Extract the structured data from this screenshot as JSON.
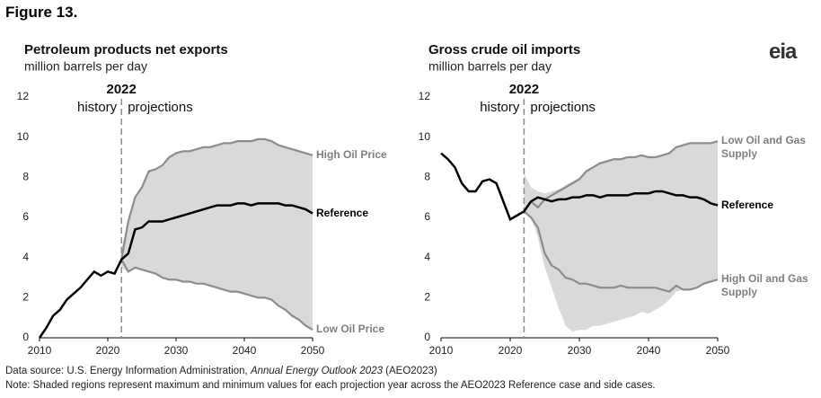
{
  "figure_label": "Figure 13.",
  "logo": "eia",
  "source": {
    "prefix": "Data source: U.S. Energy Information Administration, ",
    "title": "Annual Energy Outlook 2023",
    "suffix": " (AEO2023)"
  },
  "note": "Note: Shaded regions represent maximum and minimum values for each projection year across the AEO2023 Reference case and side cases.",
  "chart_data": [
    {
      "type": "line",
      "title": "Petroleum products net exports",
      "subtitle": "million barrels per day",
      "xlim": [
        2010,
        2050
      ],
      "xticks": [
        2010,
        2020,
        2030,
        2040,
        2050
      ],
      "ylim": [
        0,
        12
      ],
      "yticks": [
        0,
        2,
        4,
        6,
        8,
        10,
        12
      ],
      "divider": 2022,
      "history_label": "history",
      "projection_label": "projections",
      "band": {
        "color": "#d9d9d9",
        "x": [
          2022,
          2023,
          2024,
          2025,
          2026,
          2027,
          2028,
          2029,
          2030,
          2031,
          2032,
          2033,
          2034,
          2035,
          2036,
          2037,
          2038,
          2039,
          2040,
          2041,
          2042,
          2043,
          2044,
          2045,
          2046,
          2047,
          2048,
          2049,
          2050
        ],
        "upper": [
          4.5,
          5.8,
          7.0,
          7.5,
          8.3,
          8.4,
          8.6,
          9.0,
          9.2,
          9.3,
          9.3,
          9.4,
          9.5,
          9.5,
          9.6,
          9.7,
          9.7,
          9.8,
          9.8,
          9.8,
          9.9,
          9.9,
          9.8,
          9.6,
          9.5,
          9.4,
          9.3,
          9.2,
          9.1
        ],
        "lower": [
          3.5,
          3.3,
          3.5,
          3.4,
          3.3,
          3.2,
          3.0,
          2.9,
          2.9,
          2.8,
          2.8,
          2.7,
          2.7,
          2.6,
          2.5,
          2.4,
          2.3,
          2.3,
          2.2,
          2.1,
          2.0,
          2.0,
          1.9,
          1.6,
          1.4,
          1.1,
          0.9,
          0.6,
          0.4
        ]
      },
      "series": [
        {
          "name": "High Oil Price",
          "color": "#8c8c8c",
          "x": [
            2022,
            2023,
            2024,
            2025,
            2026,
            2027,
            2028,
            2029,
            2030,
            2031,
            2032,
            2033,
            2034,
            2035,
            2036,
            2037,
            2038,
            2039,
            2040,
            2041,
            2042,
            2043,
            2044,
            2045,
            2046,
            2047,
            2048,
            2049,
            2050
          ],
          "values": [
            3.9,
            5.8,
            7.0,
            7.5,
            8.3,
            8.4,
            8.6,
            9.0,
            9.2,
            9.3,
            9.3,
            9.4,
            9.5,
            9.5,
            9.6,
            9.7,
            9.7,
            9.8,
            9.8,
            9.8,
            9.9,
            9.9,
            9.8,
            9.6,
            9.5,
            9.4,
            9.3,
            9.2,
            9.1
          ]
        },
        {
          "name": "Low Oil Price",
          "color": "#8c8c8c",
          "x": [
            2022,
            2023,
            2024,
            2025,
            2026,
            2027,
            2028,
            2029,
            2030,
            2031,
            2032,
            2033,
            2034,
            2035,
            2036,
            2037,
            2038,
            2039,
            2040,
            2041,
            2042,
            2043,
            2044,
            2045,
            2046,
            2047,
            2048,
            2049,
            2050
          ],
          "values": [
            3.9,
            3.3,
            3.5,
            3.4,
            3.3,
            3.2,
            3.0,
            2.9,
            2.9,
            2.8,
            2.8,
            2.7,
            2.7,
            2.6,
            2.5,
            2.4,
            2.3,
            2.3,
            2.2,
            2.1,
            2.0,
            2.0,
            1.9,
            1.6,
            1.4,
            1.1,
            0.9,
            0.6,
            0.4
          ]
        },
        {
          "name": "Reference",
          "color": "#000000",
          "x": [
            2010,
            2011,
            2012,
            2013,
            2014,
            2015,
            2016,
            2017,
            2018,
            2019,
            2020,
            2021,
            2022,
            2023,
            2024,
            2025,
            2026,
            2027,
            2028,
            2029,
            2030,
            2031,
            2032,
            2033,
            2034,
            2035,
            2036,
            2037,
            2038,
            2039,
            2040,
            2041,
            2042,
            2043,
            2044,
            2045,
            2046,
            2047,
            2048,
            2049,
            2050
          ],
          "values": [
            0.0,
            0.5,
            1.1,
            1.4,
            1.9,
            2.2,
            2.5,
            2.9,
            3.3,
            3.1,
            3.3,
            3.2,
            3.9,
            4.2,
            5.4,
            5.5,
            5.8,
            5.8,
            5.8,
            5.9,
            6.0,
            6.1,
            6.2,
            6.3,
            6.4,
            6.5,
            6.6,
            6.6,
            6.6,
            6.7,
            6.7,
            6.6,
            6.7,
            6.7,
            6.7,
            6.7,
            6.6,
            6.6,
            6.5,
            6.4,
            6.2
          ]
        }
      ]
    },
    {
      "type": "line",
      "title": "Gross crude oil imports",
      "subtitle": "million barrels per day",
      "xlim": [
        2010,
        2050
      ],
      "xticks": [
        2010,
        2020,
        2030,
        2040,
        2050
      ],
      "ylim": [
        0,
        12
      ],
      "yticks": [
        0,
        2,
        4,
        6,
        8,
        10,
        12
      ],
      "divider": 2022,
      "history_label": "history",
      "projection_label": "projections",
      "band": {
        "color": "#d9d9d9",
        "x": [
          2022,
          2023,
          2024,
          2025,
          2026,
          2027,
          2028,
          2029,
          2030,
          2031,
          2032,
          2033,
          2034,
          2035,
          2036,
          2037,
          2038,
          2039,
          2040,
          2041,
          2042,
          2043,
          2044,
          2045,
          2046,
          2047,
          2048,
          2049,
          2050
        ],
        "upper": [
          8.2,
          7.5,
          7.3,
          7.2,
          7.3,
          7.4,
          7.6,
          7.8,
          8.0,
          8.3,
          8.5,
          8.7,
          8.8,
          8.9,
          8.9,
          9.0,
          9.0,
          9.1,
          9.0,
          9.0,
          9.1,
          9.2,
          9.5,
          9.6,
          9.7,
          9.7,
          9.7,
          9.7,
          9.8
        ],
        "lower": [
          6.3,
          6.0,
          5.0,
          3.5,
          2.5,
          1.5,
          0.6,
          0.3,
          0.4,
          0.4,
          0.6,
          0.6,
          0.7,
          0.8,
          0.9,
          1.0,
          1.1,
          1.3,
          1.2,
          1.4,
          1.6,
          1.9,
          2.3,
          2.4,
          2.4,
          2.5,
          2.7,
          2.8,
          2.9
        ]
      },
      "series": [
        {
          "name": "Low Oil and Gas Supply",
          "color": "#8c8c8c",
          "x": [
            2022,
            2023,
            2024,
            2025,
            2026,
            2027,
            2028,
            2029,
            2030,
            2031,
            2032,
            2033,
            2034,
            2035,
            2036,
            2037,
            2038,
            2039,
            2040,
            2041,
            2042,
            2043,
            2044,
            2045,
            2046,
            2047,
            2048,
            2049,
            2050
          ],
          "values": [
            6.3,
            6.8,
            6.5,
            6.9,
            7.1,
            7.3,
            7.5,
            7.7,
            7.9,
            8.3,
            8.5,
            8.7,
            8.8,
            8.9,
            8.9,
            9.0,
            9.0,
            9.1,
            9.0,
            9.0,
            9.1,
            9.2,
            9.5,
            9.6,
            9.7,
            9.7,
            9.7,
            9.7,
            9.8
          ]
        },
        {
          "name": "High Oil and Gas Supply",
          "color": "#8c8c8c",
          "x": [
            2022,
            2023,
            2024,
            2025,
            2026,
            2027,
            2028,
            2029,
            2030,
            2031,
            2032,
            2033,
            2034,
            2035,
            2036,
            2037,
            2038,
            2039,
            2040,
            2041,
            2042,
            2043,
            2044,
            2045,
            2046,
            2047,
            2048,
            2049,
            2050
          ],
          "values": [
            6.3,
            6.0,
            5.5,
            4.2,
            3.6,
            3.4,
            3.0,
            2.9,
            2.7,
            2.7,
            2.6,
            2.5,
            2.5,
            2.5,
            2.6,
            2.5,
            2.5,
            2.5,
            2.5,
            2.5,
            2.4,
            2.3,
            2.6,
            2.4,
            2.4,
            2.5,
            2.7,
            2.8,
            2.9
          ]
        },
        {
          "name": "Reference",
          "color": "#000000",
          "x": [
            2010,
            2011,
            2012,
            2013,
            2014,
            2015,
            2016,
            2017,
            2018,
            2019,
            2020,
            2021,
            2022,
            2023,
            2024,
            2025,
            2026,
            2027,
            2028,
            2029,
            2030,
            2031,
            2032,
            2033,
            2034,
            2035,
            2036,
            2037,
            2038,
            2039,
            2040,
            2041,
            2042,
            2043,
            2044,
            2045,
            2046,
            2047,
            2048,
            2049,
            2050
          ],
          "values": [
            9.2,
            8.9,
            8.5,
            7.7,
            7.3,
            7.3,
            7.8,
            7.9,
            7.7,
            6.8,
            5.9,
            6.1,
            6.3,
            6.8,
            7.0,
            6.9,
            6.8,
            6.9,
            6.9,
            7.0,
            7.0,
            7.1,
            7.1,
            7.0,
            7.1,
            7.1,
            7.1,
            7.1,
            7.2,
            7.2,
            7.2,
            7.3,
            7.3,
            7.2,
            7.1,
            7.1,
            7.0,
            7.0,
            6.9,
            6.7,
            6.6
          ]
        }
      ]
    }
  ]
}
